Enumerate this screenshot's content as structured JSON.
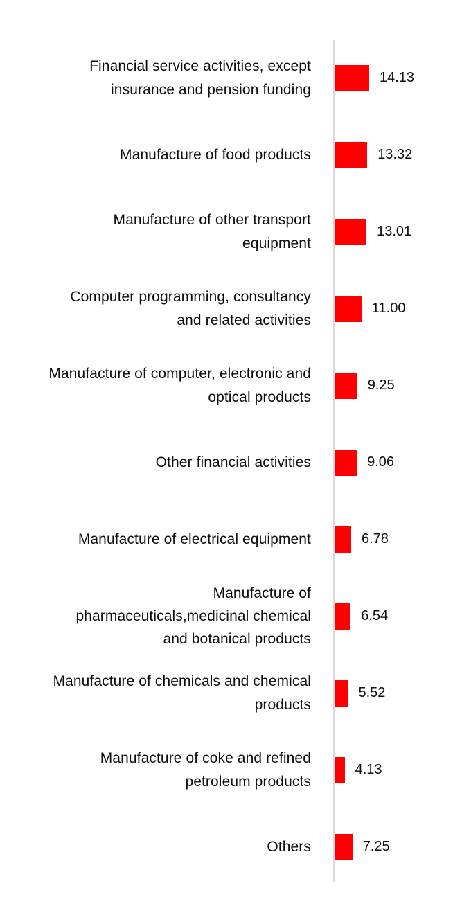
{
  "chart_data": {
    "type": "bar",
    "orientation": "horizontal",
    "title": "",
    "xlabel": "",
    "ylabel": "",
    "grid": false,
    "legend": false,
    "xlim": [
      0,
      18
    ],
    "bar_color": "#fe0000",
    "axis_line_color": "#d9d9d9",
    "categories": [
      "Financial service activities, except insurance and pension funding",
      "Manufacture of food products",
      "Manufacture of other transport equipment",
      "Computer programming, consultancy and related activities",
      "Manufacture of computer, electronic and optical products",
      "Other financial activities",
      "Manufacture of electrical equipment",
      "Manufacture of pharmaceuticals,medicinal chemical and botanical products",
      "Manufacture of chemicals and chemical products",
      "Manufacture of coke and refined petroleum products",
      "Others"
    ],
    "values": [
      14.13,
      13.32,
      13.01,
      11.0,
      9.25,
      9.06,
      6.78,
      6.54,
      5.52,
      4.13,
      7.25
    ],
    "value_labels": [
      "14.13",
      "13.32",
      "13.01",
      "11.00",
      "9.25",
      "9.06",
      "6.78",
      "6.54",
      "5.52",
      "4.13",
      "7.25"
    ]
  }
}
